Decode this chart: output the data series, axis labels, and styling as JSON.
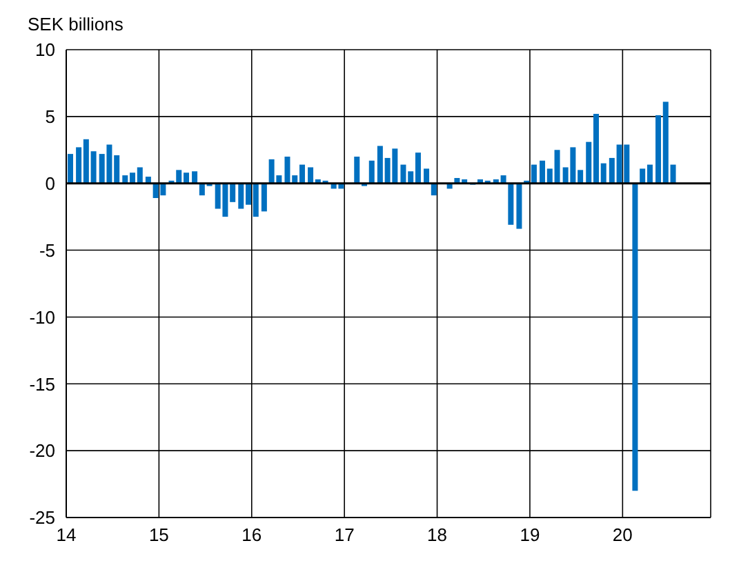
{
  "chart_data": {
    "type": "bar",
    "ylabel": "SEK billions",
    "color": "#0070c0",
    "x": [
      14.04,
      14.13,
      14.21,
      14.29,
      14.38,
      14.46,
      14.54,
      14.63,
      14.71,
      14.79,
      14.88,
      14.96,
      15.04,
      15.13,
      15.21,
      15.29,
      15.38,
      15.46,
      15.54,
      15.63,
      15.71,
      15.79,
      15.88,
      15.96,
      16.04,
      16.13,
      16.21,
      16.29,
      16.38,
      16.46,
      16.54,
      16.63,
      16.71,
      16.79,
      16.88,
      16.96,
      17.04,
      17.13,
      17.21,
      17.29,
      17.38,
      17.46,
      17.54,
      17.63,
      17.71,
      17.79,
      17.88,
      17.96,
      18.04,
      18.13,
      18.21,
      18.29,
      18.38,
      18.46,
      18.54,
      18.63,
      18.71,
      18.79,
      18.88,
      18.96,
      19.04,
      19.13,
      19.21,
      19.29,
      19.38,
      19.46,
      19.54,
      19.63,
      19.71,
      19.79,
      19.88,
      19.96,
      20.04,
      20.13,
      20.21,
      20.29,
      20.38,
      20.46,
      20.54
    ],
    "values": [
      2.2,
      2.7,
      3.3,
      2.4,
      2.2,
      2.9,
      2.1,
      0.6,
      0.8,
      1.2,
      0.5,
      -1.1,
      -0.9,
      0.2,
      1.0,
      0.8,
      0.9,
      -0.9,
      -0.2,
      -1.9,
      -2.5,
      -1.4,
      -1.9,
      -1.6,
      -2.5,
      -2.1,
      1.8,
      0.6,
      2.0,
      0.6,
      1.4,
      1.2,
      0.3,
      0.2,
      -0.4,
      -0.4,
      0.0,
      2.0,
      -0.2,
      1.7,
      2.8,
      1.9,
      2.6,
      1.4,
      0.9,
      2.3,
      1.1,
      -0.9,
      0.0,
      -0.4,
      0.4,
      0.3,
      -0.1,
      0.3,
      0.2,
      0.3,
      0.6,
      -3.1,
      -3.4,
      0.2,
      1.4,
      1.7,
      1.1,
      2.5,
      1.2,
      2.7,
      1.0,
      3.1,
      5.2,
      1.5,
      1.9,
      2.9,
      2.9,
      -23.0,
      1.1,
      1.4,
      5.1,
      6.1,
      1.4
    ],
    "xlim": [
      14,
      20.95
    ],
    "xticks": [
      14,
      15,
      16,
      17,
      18,
      19,
      20
    ],
    "ylim": [
      -25,
      10
    ],
    "yticks": [
      -25,
      -20,
      -15,
      -10,
      -5,
      0,
      5,
      10
    ],
    "grid": true,
    "legend": false
  }
}
